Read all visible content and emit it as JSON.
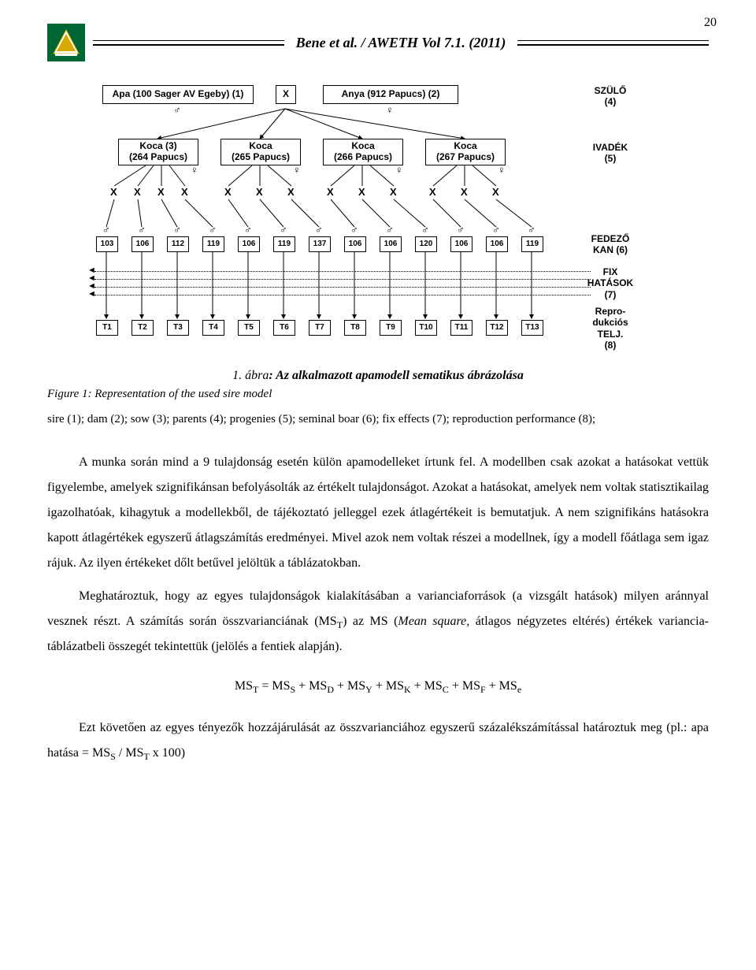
{
  "page_number": "20",
  "header_title": "Bene et al. / AWETH Vol 7.1. (2011)",
  "logo": {
    "bg_color": "#006633"
  },
  "diagram": {
    "parents": {
      "sire": {
        "label": "Apa (100 Sager AV Egeby) (1)",
        "symbol": "♂"
      },
      "X": "X",
      "dam": {
        "label": "Anya (912 Papucs) (2)",
        "symbol": "♀"
      },
      "row_label": "SZÜLŐ\n(4)"
    },
    "progeny": {
      "items": [
        {
          "line1": "Koca (3)",
          "line2": "(264 Papucs)"
        },
        {
          "line1": "Koca",
          "line2": "(265 Papucs)"
        },
        {
          "line1": "Koca",
          "line2": "(266 Papucs)"
        },
        {
          "line1": "Koca",
          "line2": "(267 Papucs)"
        }
      ],
      "symbol": "♀",
      "row_label": "IVADÉK\n(5)"
    },
    "x_rows": [
      [
        "X",
        "X",
        "X",
        "X"
      ],
      [
        "X",
        "X",
        "X"
      ],
      [
        "X",
        "X",
        "X"
      ],
      [
        "X",
        "X",
        "X"
      ]
    ],
    "boars": {
      "symbol": "♂",
      "ids": [
        "103",
        "106",
        "112",
        "119",
        "106",
        "119",
        "137",
        "106",
        "106",
        "120",
        "106",
        "106",
        "119"
      ],
      "row_label": "FEDEZŐ\nKAN (6)"
    },
    "fix": "FIX\nHATÁSOK\n(7)",
    "traits": {
      "ids": [
        "T1",
        "T2",
        "T3",
        "T4",
        "T5",
        "T6",
        "T7",
        "T8",
        "T9",
        "T10",
        "T11",
        "T12",
        "T13"
      ],
      "row_label": "Repro-\ndukciós\nTELJ.\n(8)"
    }
  },
  "caption_num": "1. ábra",
  "caption_rest": ": Az alkalmazott apamodell sematikus ábrázolása",
  "fig_desc": "Figure 1: Representation of the used sire model",
  "fig_legend": "sire (1); dam (2); sow (3); parents (4); progenies (5); seminal boar (6); fix effects (7); reproduction performance (8);",
  "para1": "A munka során mind a 9 tulajdonság esetén külön apamodelleket írtunk fel. A modellben csak azokat a hatásokat vettük figyelembe, amelyek szignifikánsan befolyásolták az értékelt tulajdonságot. Azokat a hatásokat, amelyek nem voltak statisztikailag igazolhatóak, kihagytuk a modellekből, de tájékoztató jelleggel ezek átlagértékeit is bemutatjuk. A nem szignifikáns hatásokra kapott átlagértékek egyszerű átlagszámítás eredményei. Mivel azok nem voltak részei a modellnek, így a modell főátlaga sem igaz rájuk. Az ilyen értékeket dőlt betűvel jelöltük a táblázatokban.",
  "para2_a": "Meghatároztuk, hogy az egyes tulajdonságok kialakításában a varianciaforrások (a vizsgált hatások) milyen aránnyal vesznek részt. A számítás során összvarianciának (MS",
  "para2_b": ") az MS (",
  "para2_c": "Mean square,",
  "para2_d": " átlagos négyzetes eltérés) értékek variancia-táblázatbeli összegét tekintettük (jelölés a fentiek alapján).",
  "formula": "MST = MSS + MSD + MSY + MSK + MSC + MSF + MSe",
  "para3_a": "Ezt követően az egyes tényezők hozzájárulását az összvarianciához egyszerű százalékszámítással határoztuk meg (pl.: apa hatása = MS",
  "para3_b": " / MS",
  "para3_c": " x 100)"
}
